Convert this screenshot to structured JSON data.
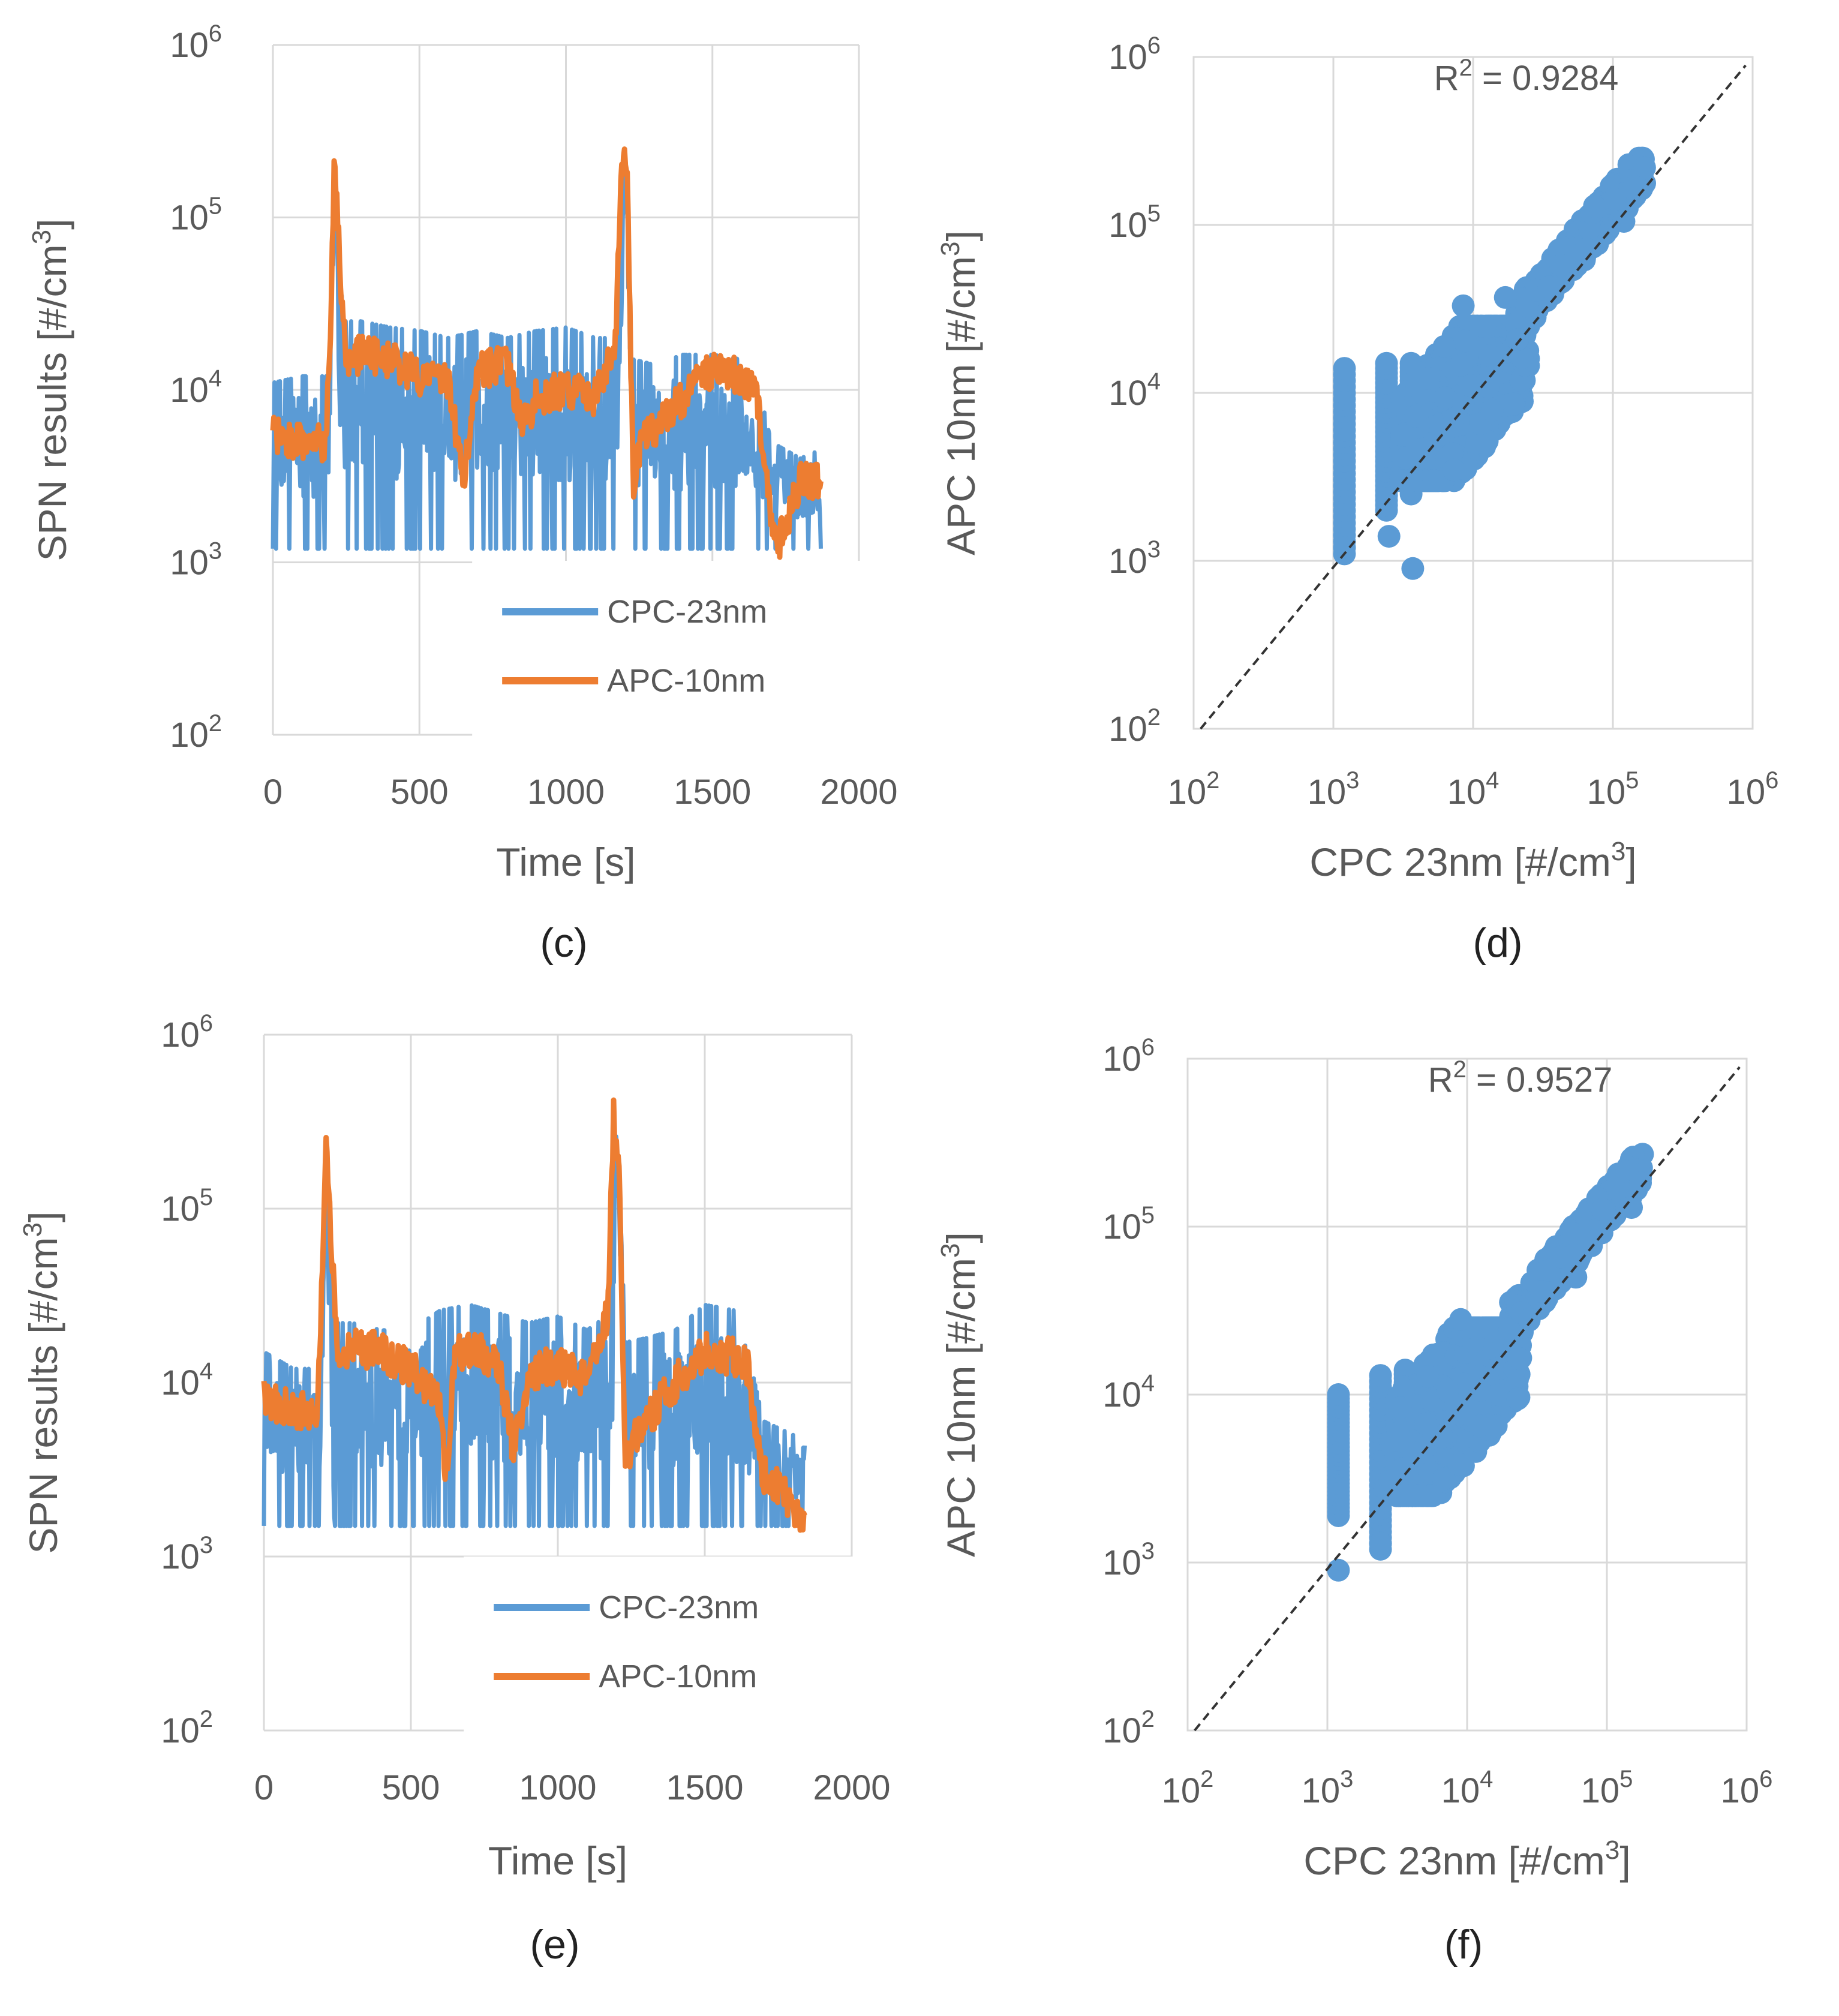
{
  "colors": {
    "cpc": "#5b9bd5",
    "apc": "#ed7d31",
    "grid": "#d9d9d9",
    "text": "#595959"
  },
  "chart_data": [
    {
      "id": "c",
      "type": "line",
      "panel_label": "(c)",
      "xlabel": "Time [s]",
      "ylabel": "SPN results  [#/cm³]",
      "xlim": [
        0,
        2000
      ],
      "ylim_log10": [
        2,
        6
      ],
      "x_ticks": [
        "0",
        "500",
        "1000",
        "1500",
        "2000"
      ],
      "y_ticks": [
        {
          "base": "10",
          "exp": "2"
        },
        {
          "base": "10",
          "exp": "3"
        },
        {
          "base": "10",
          "exp": "4"
        },
        {
          "base": "10",
          "exp": "5"
        },
        {
          "base": "10",
          "exp": "6"
        }
      ],
      "legend": [
        "CPC-23nm",
        "APC-10nm"
      ],
      "series": [
        {
          "name": "CPC-23nm",
          "color": "#5b9bd5",
          "x": [
            0,
            100,
            190,
            210,
            240,
            300,
            400,
            500,
            600,
            700,
            800,
            900,
            1000,
            1100,
            1180,
            1200,
            1230,
            1300,
            1400,
            1500,
            1600,
            1650,
            1700,
            1800,
            1870
          ],
          "y_range_low": [
            1200,
            1200,
            1200,
            150000,
            1200,
            1200,
            1200,
            1200,
            1200,
            1200,
            1200,
            1200,
            1200,
            1200,
            1200,
            200000,
            1200,
            1200,
            1200,
            1200,
            1200,
            1200,
            1200,
            1200,
            1200
          ],
          "y_range_high": [
            11000,
            12000,
            12000,
            200000,
            25000,
            25000,
            23000,
            22000,
            20000,
            22000,
            20000,
            22000,
            23000,
            20000,
            20000,
            250000,
            15000,
            14000,
            16000,
            16000,
            15000,
            12000,
            5000,
            4000,
            4500
          ]
        },
        {
          "name": "APC-10nm",
          "color": "#ed7d31",
          "x": [
            0,
            100,
            180,
            195,
            210,
            230,
            250,
            300,
            400,
            500,
            600,
            650,
            700,
            800,
            850,
            900,
            1000,
            1100,
            1170,
            1190,
            1210,
            1230,
            1260,
            1300,
            1400,
            1500,
            1600,
            1650,
            1680,
            1700,
            1720,
            1800,
            1870
          ],
          "y": [
            5500,
            5000,
            5000,
            20000,
            230000,
            50000,
            15000,
            16000,
            15000,
            12000,
            11000,
            3000,
            13000,
            14000,
            6000,
            9000,
            10000,
            9000,
            20000,
            250000,
            150000,
            3000,
            5000,
            6000,
            9000,
            13000,
            12000,
            10000,
            3000,
            2000,
            1200,
            3000,
            3000
          ]
        }
      ]
    },
    {
      "id": "d",
      "type": "scatter",
      "panel_label": "(d)",
      "xlabel": "CPC 23nm [#/cm³]",
      "ylabel": "APC 10nm [#/cm³]",
      "xlim_log10": [
        2,
        6
      ],
      "ylim_log10": [
        2,
        6
      ],
      "ticks": [
        {
          "base": "10",
          "exp": "2"
        },
        {
          "base": "10",
          "exp": "3"
        },
        {
          "base": "10",
          "exp": "4"
        },
        {
          "base": "10",
          "exp": "5"
        },
        {
          "base": "10",
          "exp": "6"
        }
      ],
      "annotation": {
        "prefix": "R",
        "sup": "2",
        "text": " = 0.9284"
      },
      "trendline": {
        "style": "dashed",
        "x_log10": [
          2.05,
          5.95
        ],
        "y_log10": [
          2.0,
          5.95
        ]
      },
      "series": [
        {
          "name": "points",
          "color": "#5b9bd5",
          "columns": [
            {
              "x": 1200,
              "y_min": 1100,
              "y_max": 14000
            },
            {
              "x": 2400,
              "y_min": 2000,
              "y_max": 15000
            },
            {
              "x": 3600,
              "y_min": 2500,
              "y_max": 15000
            }
          ],
          "outliers": [
            [
              1200,
              1200
            ],
            [
              2500,
              1400
            ],
            [
              3700,
              900
            ],
            [
              8500,
              33000
            ],
            [
              17000,
              37000
            ],
            [
              120000,
              105000
            ]
          ],
          "cloud_x_range": [
            3000,
            25000
          ],
          "cloud_y_range": [
            3000,
            25000
          ],
          "upper_x_range": [
            20000,
            170000
          ],
          "upper_y_range": [
            30000,
            250000
          ]
        }
      ]
    },
    {
      "id": "e",
      "type": "line",
      "panel_label": "(e)",
      "xlabel": "Time [s]",
      "ylabel": "SPN results  [#/cm³]",
      "xlim": [
        0,
        2000
      ],
      "ylim_log10": [
        2,
        6
      ],
      "x_ticks": [
        "0",
        "500",
        "1000",
        "1500",
        "2000"
      ],
      "y_ticks": [
        {
          "base": "10",
          "exp": "2"
        },
        {
          "base": "10",
          "exp": "3"
        },
        {
          "base": "10",
          "exp": "4"
        },
        {
          "base": "10",
          "exp": "5"
        },
        {
          "base": "10",
          "exp": "6"
        }
      ],
      "legend": [
        "CPC-23nm",
        "APC-10nm"
      ],
      "series": [
        {
          "name": "CPC-23nm",
          "color": "#5b9bd5",
          "x": [
            0,
            100,
            190,
            210,
            240,
            300,
            400,
            500,
            600,
            700,
            800,
            900,
            1000,
            1100,
            1180,
            1200,
            1230,
            1300,
            1400,
            1500,
            1600,
            1650,
            1700,
            1800,
            1840
          ],
          "y_range_low": [
            1500,
            1500,
            1500,
            150000,
            1500,
            1500,
            1500,
            1500,
            1500,
            1500,
            1500,
            1500,
            1500,
            1500,
            1500,
            250000,
            1500,
            1500,
            1500,
            1500,
            1500,
            1500,
            1500,
            1500,
            1500
          ],
          "y_range_high": [
            15000,
            12000,
            12000,
            200000,
            22000,
            22000,
            20000,
            20000,
            26000,
            28000,
            25000,
            22000,
            24000,
            20000,
            25000,
            330000,
            17000,
            18000,
            20000,
            28000,
            26000,
            14000,
            6000,
            5000,
            5000
          ]
        },
        {
          "name": "APC-10nm",
          "color": "#ed7d31",
          "x": [
            0,
            100,
            180,
            195,
            210,
            230,
            250,
            300,
            400,
            500,
            600,
            620,
            650,
            700,
            800,
            850,
            900,
            1000,
            1100,
            1170,
            1190,
            1210,
            1230,
            1260,
            1300,
            1400,
            1500,
            1600,
            1650,
            1680,
            1700,
            1750,
            1800,
            1840
          ],
          "y": [
            8000,
            7000,
            7000,
            25000,
            250000,
            60000,
            15000,
            16000,
            15000,
            12000,
            8000,
            2800,
            14000,
            16000,
            13000,
            4000,
            11000,
            13000,
            10000,
            25000,
            350000,
            150000,
            3000,
            5000,
            6000,
            10000,
            15000,
            14000,
            12000,
            4000,
            3000,
            2500,
            2000,
            1500
          ]
        }
      ]
    },
    {
      "id": "f",
      "type": "scatter",
      "panel_label": "(f)",
      "xlabel": "CPC 23nm [#/cm³]",
      "ylabel": "APC 10nm [#/cm³]",
      "xlim_log10": [
        2,
        6
      ],
      "ylim_log10": [
        2,
        6
      ],
      "ticks": [
        {
          "base": "10",
          "exp": "2"
        },
        {
          "base": "10",
          "exp": "3"
        },
        {
          "base": "10",
          "exp": "4"
        },
        {
          "base": "10",
          "exp": "5"
        },
        {
          "base": "10",
          "exp": "6"
        }
      ],
      "annotation": {
        "prefix": "R",
        "sup": "2",
        "text": " = 0.9527"
      },
      "trendline": {
        "style": "dashed",
        "x_log10": [
          2.05,
          5.95
        ],
        "y_log10": [
          2.0,
          5.95
        ]
      },
      "series": [
        {
          "name": "points",
          "color": "#5b9bd5",
          "columns": [
            {
              "x": 1200,
              "y_min": 1900,
              "y_max": 10000
            },
            {
              "x": 2400,
              "y_min": 1200,
              "y_max": 13000
            },
            {
              "x": 3600,
              "y_min": 2500,
              "y_max": 14000
            }
          ],
          "outliers": [
            [
              1200,
              900
            ],
            [
              2400,
              1300
            ],
            [
              9000,
              28000
            ],
            [
              60000,
              50000
            ],
            [
              150000,
              130000
            ]
          ],
          "cloud_x_range": [
            3000,
            25000
          ],
          "cloud_y_range": [
            2500,
            25000
          ],
          "upper_x_range": [
            20000,
            180000
          ],
          "upper_y_range": [
            30000,
            270000
          ]
        }
      ]
    }
  ]
}
